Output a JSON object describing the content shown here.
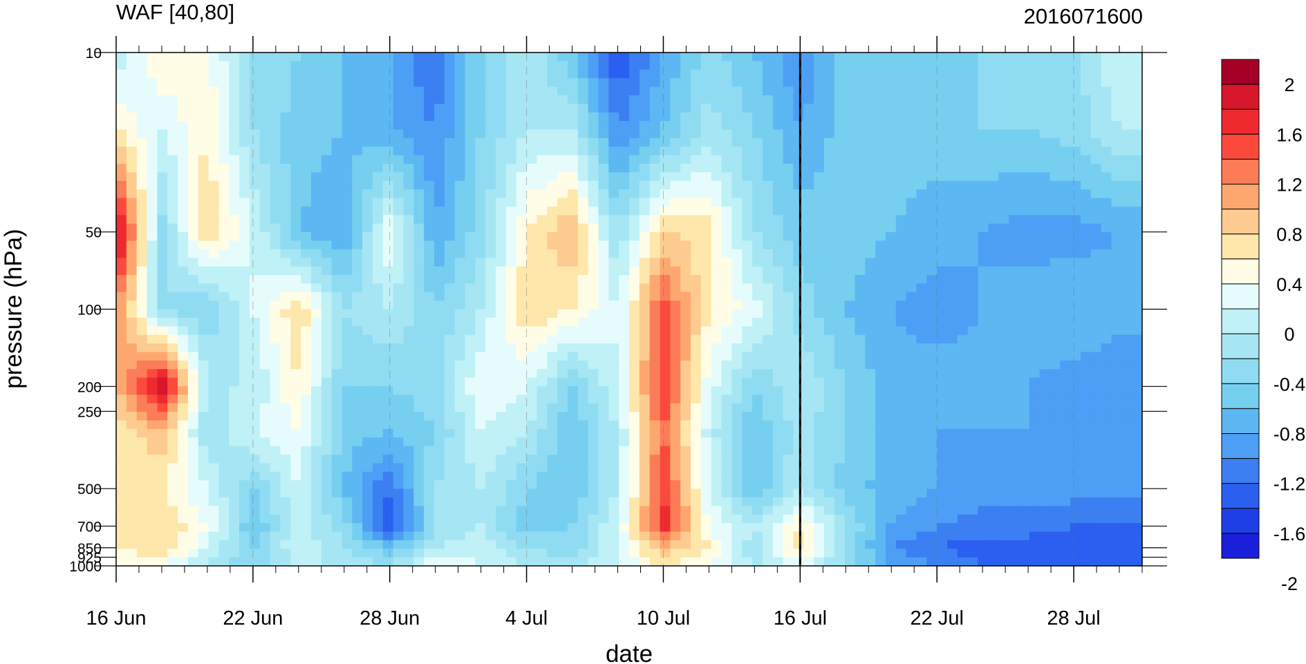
{
  "chart_data": {
    "type": "heatmap",
    "title_left": "WAF [40,80]",
    "title_right": "2016071600",
    "xlabel": "date",
    "ylabel": "pressure (hPa)",
    "x_ticks": [
      "16 Jun",
      "22 Jun",
      "28 Jun",
      "4 Jul",
      "10 Jul",
      "16 Jul",
      "22 Jul",
      "28 Jul"
    ],
    "x_range": [
      "16 Jun",
      "31 Jul"
    ],
    "y_ticks": [
      "10",
      "50",
      "100",
      "200",
      "250",
      "500",
      "700",
      "850",
      "925",
      "1000"
    ],
    "y_log_scale": true,
    "y_range": [
      1000,
      10
    ],
    "marked_date": "16 Jul",
    "colorbar_labels": [
      "2",
      "1.6",
      "1.2",
      "0.8",
      "0.4",
      "0",
      "-0.4",
      "-0.8",
      "-1.2",
      "-1.6",
      "-2"
    ],
    "colorbar_levels": [
      2.2,
      2.0,
      1.8,
      1.6,
      1.4,
      1.2,
      1.0,
      0.8,
      0.6,
      0.4,
      0.2,
      0.0,
      -0.2,
      -0.4,
      -0.6,
      -0.8,
      -1.0,
      -1.2,
      -1.4,
      -1.6,
      -1.8,
      -2.0,
      -2.2
    ],
    "colors": [
      "#a50026",
      "#d7172b",
      "#ee2a2f",
      "#fb4a3c",
      "#fd7c58",
      "#fda76f",
      "#fdcb8f",
      "#fee7ab",
      "#fffde6",
      "#e6fcfc",
      "#bff1f7",
      "#a6e6f4",
      "#8fdcf2",
      "#77cff0",
      "#5cb7f3",
      "#4d9ff5",
      "#3b7ff2",
      "#2a5ff0",
      "#1f3fe6",
      "#1a1fd9"
    ],
    "data_days": [
      0,
      2,
      4,
      6,
      8,
      10,
      12,
      14,
      16,
      18,
      20,
      22,
      24,
      26,
      28,
      30,
      32,
      34,
      36,
      38,
      40,
      42,
      44
    ],
    "data_pressures": [
      10,
      20,
      50,
      100,
      200,
      300,
      500,
      700,
      850,
      1000
    ],
    "values": [
      [
        0.0,
        0.6,
        0.4,
        -0.2,
        -0.4,
        -0.6,
        -0.8,
        -1.2,
        -0.4,
        0.0,
        -0.6,
        -1.4,
        -0.8,
        -0.3,
        -0.6,
        -1.0,
        -0.5,
        -0.4,
        -0.5,
        -0.4,
        -0.4,
        -0.3,
        0.2
      ],
      [
        0.6,
        0.2,
        0.6,
        -0.2,
        -0.5,
        -0.6,
        -0.8,
        -1.0,
        -0.4,
        0.0,
        0.0,
        -1.0,
        -0.6,
        -0.1,
        -0.4,
        -0.8,
        -0.5,
        -0.5,
        -0.5,
        -0.4,
        -0.4,
        -0.3,
        0.0
      ],
      [
        2.1,
        -0.3,
        0.8,
        0.2,
        -0.6,
        -0.8,
        0.4,
        -0.8,
        -0.3,
        0.6,
        1.0,
        -0.2,
        0.8,
        0.7,
        -0.2,
        -0.5,
        -0.5,
        -0.6,
        -0.7,
        -0.8,
        -0.9,
        -0.9,
        -0.8
      ],
      [
        1.2,
        -0.2,
        -0.4,
        0.2,
        0.8,
        -0.2,
        0.0,
        -0.4,
        0.0,
        0.8,
        0.6,
        0.2,
        1.5,
        0.6,
        0.3,
        -0.3,
        -0.6,
        -0.8,
        -0.9,
        -0.8,
        -0.7,
        -0.6,
        -0.7
      ],
      [
        1.0,
        2.0,
        0.0,
        0.0,
        0.6,
        -0.4,
        -0.4,
        -0.3,
        0.4,
        0.2,
        -0.4,
        0.2,
        1.6,
        0.3,
        -0.4,
        0.0,
        -0.4,
        -0.7,
        -0.7,
        -0.7,
        -0.8,
        -0.9,
        -1.0
      ],
      [
        0.6,
        1.0,
        -0.2,
        0.2,
        0.4,
        -0.5,
        -0.6,
        -0.4,
        0.2,
        0.0,
        -0.6,
        0.0,
        1.4,
        0.1,
        -0.6,
        -0.1,
        -0.4,
        -0.7,
        -0.8,
        -0.8,
        -0.8,
        -0.8,
        -0.8
      ],
      [
        0.6,
        0.6,
        0.2,
        -0.4,
        0.2,
        -0.6,
        -1.2,
        -0.2,
        0.0,
        -0.4,
        -0.6,
        0.0,
        1.6,
        0.2,
        -0.6,
        0.0,
        -0.5,
        -0.7,
        -0.8,
        -0.9,
        -0.9,
        -0.9,
        -0.9
      ],
      [
        0.6,
        0.8,
        0.4,
        -0.6,
        0.1,
        -0.3,
        -1.4,
        -0.2,
        0.0,
        -0.5,
        -0.4,
        0.2,
        1.7,
        0.4,
        0.0,
        0.6,
        -0.2,
        -0.8,
        -1.0,
        -1.1,
        -1.1,
        -1.2,
        -1.2
      ],
      [
        0.6,
        0.8,
        0.2,
        -0.4,
        0.2,
        -0.2,
        -0.6,
        0.0,
        0.1,
        -0.2,
        -0.4,
        0.2,
        1.0,
        0.6,
        -0.2,
        0.8,
        -0.2,
        -1.0,
        -1.2,
        -1.3,
        -1.3,
        -1.4,
        -1.4
      ],
      [
        0.4,
        0.4,
        0.0,
        -0.4,
        0.0,
        0.0,
        -0.2,
        0.4,
        0.2,
        0.0,
        0.0,
        0.2,
        0.6,
        0.4,
        0.0,
        0.2,
        -0.2,
        -0.8,
        -1.0,
        -1.2,
        -1.2,
        -1.2,
        -1.2
      ]
    ]
  }
}
